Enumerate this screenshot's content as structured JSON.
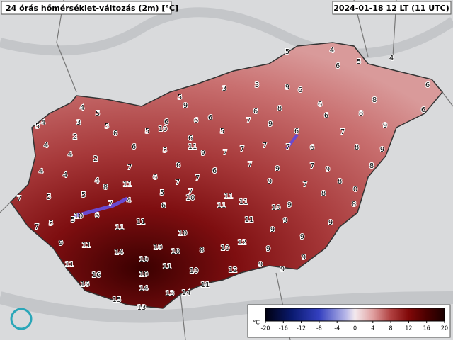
{
  "header": {
    "title": "24 órás hőmérséklet-változás (2m) [°C]",
    "timestamp": "2024-01-18 12 LT (11 UTC)"
  },
  "stations": [
    4,
    4,
    5,
    5,
    6,
    3,
    3,
    9,
    6,
    5,
    9,
    6,
    8,
    6,
    6,
    4,
    5,
    6,
    6,
    8,
    6,
    8,
    4,
    5,
    3,
    5,
    6,
    5,
    10,
    6,
    6,
    5,
    7,
    9,
    6,
    7,
    9,
    2,
    4,
    6,
    11,
    6,
    5,
    9,
    7,
    7,
    7,
    7,
    6,
    8,
    9,
    4,
    2,
    7,
    4,
    4,
    4,
    6,
    6,
    7,
    7,
    6,
    7,
    9,
    7,
    9,
    8,
    5,
    8,
    11,
    4,
    5,
    6,
    7,
    10,
    11,
    5,
    7,
    7,
    11,
    11,
    9,
    7,
    8,
    8,
    0,
    8,
    10,
    9,
    10,
    6,
    5,
    5,
    7,
    11,
    11,
    11,
    9,
    9,
    9,
    9,
    10,
    9,
    11,
    12,
    10,
    10,
    8,
    10,
    9,
    14,
    9,
    11,
    10,
    11,
    9,
    9,
    12,
    10,
    16,
    10,
    16,
    11,
    14,
    13,
    14,
    15,
    13
  ],
  "colorbar": {
    "unit": "°C",
    "range": [
      -20,
      20
    ],
    "ticks": [
      -20,
      -16,
      -12,
      -8,
      -4,
      0,
      4,
      8,
      12,
      16,
      20
    ]
  }
}
